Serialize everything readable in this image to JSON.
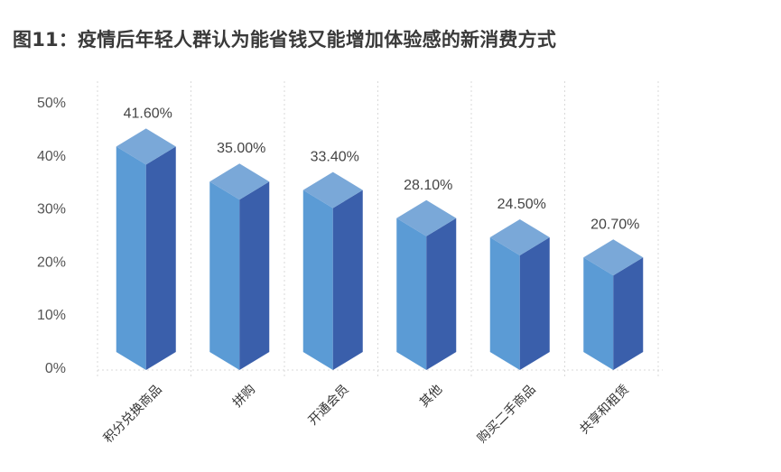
{
  "title": "图11：疫情后年轻人群认为能省钱又能增加体验感的新消费方式",
  "chart_data": {
    "type": "bar",
    "style": "3d-isometric-columns",
    "title": "图11：疫情后年轻人群认为能省钱又能增加体验感的新消费方式",
    "xlabel": "",
    "ylabel": "",
    "categories": [
      "积分兑换商品",
      "拼购",
      "开通会员",
      "其他",
      "购买二手商品",
      "共享和租赁"
    ],
    "values": [
      41.6,
      35.0,
      33.4,
      28.1,
      24.5,
      20.7
    ],
    "value_labels": [
      "41.60%",
      "35.00%",
      "33.40%",
      "28.10%",
      "24.50%",
      "20.70%"
    ],
    "ylim": [
      0,
      50
    ],
    "yticks": [
      "0%",
      "10%",
      "20%",
      "30%",
      "40%",
      "50%"
    ],
    "grid": "dashed vertical category separators, dashed baseline",
    "legend": "none",
    "colors": {
      "front_face": "#5b9bd5",
      "side_face": "#3a5fab",
      "top_face": "#7aa8d8",
      "grid": "#d9d9d9",
      "text": "#555555"
    }
  }
}
